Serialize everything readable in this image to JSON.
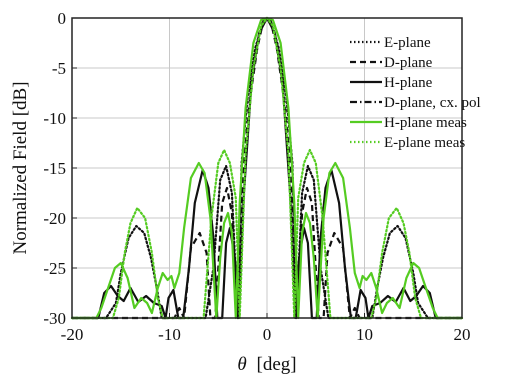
{
  "chart_data": {
    "type": "line",
    "title": "",
    "xlabel_symbol": "θ",
    "xlabel_unit": "[deg]",
    "ylabel": "Normalized Field [dB]",
    "xlim": [
      -20,
      20
    ],
    "ylim": [
      -30,
      0
    ],
    "xticks": [
      -20,
      -10,
      0,
      10,
      20
    ],
    "yticks": [
      0,
      -5,
      -10,
      -15,
      -20,
      -25,
      -30
    ],
    "grid": true,
    "legend_position": "top-right",
    "series": [
      {
        "name": "E-plane",
        "color": "#111111",
        "style": "dotted",
        "x": [
          -20,
          -17.5,
          -16.5,
          -15.5,
          -15.0,
          -14.2,
          -13.4,
          -12.6,
          -11.9,
          -11.3,
          -10.8,
          -10.0,
          -9.0,
          -7.5,
          -6.3,
          -5.5,
          -4.8,
          -4.2,
          -3.6,
          -3.0,
          -2.6,
          -2.0,
          -1.2,
          -0.4,
          0,
          0.4,
          1.2,
          2.0,
          2.6,
          3.0,
          3.6,
          4.2,
          4.8,
          5.5,
          6.3,
          7.5,
          9.0,
          10.0,
          10.8,
          11.3,
          11.9,
          12.6,
          13.4,
          14.2,
          15.0,
          15.5,
          16.5,
          17.5,
          20
        ],
        "y": [
          -30,
          -30,
          -30,
          -28.5,
          -25.5,
          -22.0,
          -20.8,
          -21.5,
          -24.0,
          -27.0,
          -30,
          -30,
          -30,
          -30,
          -30,
          -25.0,
          -16.2,
          -14.8,
          -17.5,
          -30,
          -14.5,
          -8.0,
          -3.0,
          -0.3,
          0,
          -0.3,
          -3.0,
          -8.0,
          -14.5,
          -30,
          -17.5,
          -14.8,
          -16.2,
          -25.0,
          -30,
          -30,
          -30,
          -30,
          -30,
          -27.0,
          -24.0,
          -21.5,
          -20.8,
          -22.0,
          -25.5,
          -28.5,
          -30,
          -30,
          -30
        ]
      },
      {
        "name": "D-plane",
        "color": "#111111",
        "style": "dashed",
        "x": [
          -20,
          -14,
          -12,
          -10.5,
          -9.5,
          -9.0,
          -8.5,
          -7.8,
          -6.9,
          -6.2,
          -5.8,
          -5.3,
          -4.6,
          -4.1,
          -3.6,
          -3.0,
          -2.5,
          -1.8,
          -1.0,
          -0.4,
          0,
          0.4,
          1.0,
          1.8,
          2.5,
          3.0,
          3.6,
          4.1,
          4.6,
          5.3,
          5.8,
          6.2,
          6.9,
          7.8,
          8.5,
          9.0,
          9.5,
          10.5,
          12,
          14,
          20
        ],
        "y": [
          -30,
          -30,
          -30,
          -30,
          -30,
          -29.0,
          -30,
          -23.0,
          -21.5,
          -23.5,
          -30,
          -30,
          -18.5,
          -17.0,
          -19.5,
          -30,
          -16.0,
          -8.5,
          -3.0,
          -0.4,
          0,
          -0.4,
          -3.0,
          -8.5,
          -16.0,
          -30,
          -19.5,
          -17.0,
          -18.5,
          -30,
          -30,
          -23.5,
          -21.5,
          -23.0,
          -30,
          -29.0,
          -30,
          -30,
          -30,
          -30,
          -30
        ]
      },
      {
        "name": "H-plane",
        "color": "#111111",
        "style": "solid",
        "x": [
          -20,
          -17.3,
          -16.7,
          -16.0,
          -15.3,
          -14.7,
          -14.0,
          -13.2,
          -12.4,
          -11.6,
          -10.8,
          -10.4,
          -10.1,
          -9.6,
          -9.1,
          -8.6,
          -8.0,
          -7.4,
          -6.6,
          -6.0,
          -5.5,
          -5.1,
          -4.6,
          -4.2,
          -3.8,
          -3.3,
          -2.9,
          -2.4,
          -1.6,
          -0.8,
          0,
          0.8,
          1.6,
          2.4,
          2.9,
          3.3,
          3.8,
          4.2,
          4.6,
          5.1,
          5.5,
          6.0,
          6.6,
          7.4,
          8.0,
          8.6,
          9.1,
          9.6,
          10.1,
          10.4,
          10.8,
          11.6,
          12.4,
          13.2,
          14.0,
          14.7,
          15.3,
          16.0,
          16.7,
          17.3,
          20
        ],
        "y": [
          -30,
          -30,
          -27.5,
          -26.8,
          -27.8,
          -28.3,
          -27.0,
          -28.4,
          -27.8,
          -28.5,
          -28.8,
          -30,
          -28.0,
          -27.2,
          -30,
          -30,
          -25.0,
          -18.5,
          -15.2,
          -17.0,
          -22.0,
          -30,
          -30,
          -22.5,
          -21.0,
          -24.0,
          -30,
          -18.0,
          -6.5,
          -1.5,
          0,
          -1.5,
          -6.5,
          -18.0,
          -30,
          -24.0,
          -21.0,
          -22.5,
          -30,
          -30,
          -22.0,
          -17.0,
          -15.2,
          -18.5,
          -25.0,
          -30,
          -30,
          -27.2,
          -28.0,
          -30,
          -28.8,
          -28.5,
          -27.8,
          -28.4,
          -27.0,
          -28.3,
          -27.8,
          -26.8,
          -27.5,
          -30,
          -30
        ]
      },
      {
        "name": "D-plane, cx. pol",
        "color": "#111111",
        "style": "dashdot",
        "x": [],
        "y": []
      },
      {
        "name": "H-plane meas",
        "color": "#55cc22",
        "style": "solid",
        "x": [
          -20,
          -17.5,
          -17.0,
          -16.3,
          -15.6,
          -15.0,
          -14.3,
          -13.6,
          -12.9,
          -12.3,
          -11.8,
          -11.2,
          -10.7,
          -10.2,
          -9.8,
          -9.5,
          -9.0,
          -8.5,
          -7.8,
          -7.0,
          -6.4,
          -5.8,
          -5.2,
          -4.8,
          -4.4,
          -4.0,
          -3.6,
          -3.2,
          -2.8,
          -2.2,
          -1.4,
          -0.6,
          0,
          0.6,
          1.4,
          2.2,
          2.8,
          3.2,
          3.6,
          4.0,
          4.4,
          4.8,
          5.2,
          5.8,
          6.4,
          7.0,
          7.8,
          8.5,
          9.0,
          9.5,
          9.8,
          10.2,
          10.7,
          11.2,
          11.8,
          12.3,
          12.9,
          13.6,
          14.3,
          15.0,
          15.6,
          16.3,
          17.0,
          17.5,
          20
        ],
        "y": [
          -30,
          -30,
          -29.0,
          -27.0,
          -25.0,
          -24.5,
          -26.0,
          -29.0,
          -28.0,
          -28.5,
          -29.5,
          -27.0,
          -25.5,
          -26.2,
          -25.8,
          -27.0,
          -25.5,
          -21.0,
          -16.0,
          -14.5,
          -15.5,
          -20.0,
          -30,
          -24.0,
          -20.5,
          -19.5,
          -21.5,
          -30,
          -18.5,
          -9.0,
          -2.5,
          -0.2,
          0,
          -0.2,
          -2.5,
          -9.0,
          -18.5,
          -30,
          -21.5,
          -19.5,
          -20.5,
          -24.0,
          -30,
          -20.0,
          -15.5,
          -14.5,
          -16.0,
          -21.0,
          -25.5,
          -27.0,
          -25.8,
          -26.2,
          -25.5,
          -27.0,
          -29.5,
          -28.5,
          -28.0,
          -29.0,
          -26.0,
          -24.5,
          -25.0,
          -27.0,
          -29.0,
          -30,
          -30
        ]
      },
      {
        "name": "E-plane meas",
        "color": "#55cc22",
        "style": "dotted",
        "x": [
          -20,
          -15.8,
          -15.2,
          -14.6,
          -14.0,
          -13.3,
          -12.5,
          -11.8,
          -11.2,
          -10.7,
          -10.2,
          -9.6,
          -9.0,
          -8.5,
          -7.8,
          -6.5,
          -5.7,
          -5.0,
          -4.4,
          -3.8,
          -3.2,
          -2.8,
          -2.2,
          -1.4,
          -0.6,
          0,
          0.6,
          1.4,
          2.2,
          2.8,
          3.2,
          3.8,
          4.4,
          5.0,
          5.7,
          6.5,
          7.8,
          8.5,
          9.0,
          9.6,
          10.2,
          10.7,
          11.2,
          11.8,
          12.5,
          13.3,
          14.0,
          14.6,
          15.2,
          15.8,
          20
        ],
        "y": [
          -30,
          -30,
          -28.0,
          -23.5,
          -20.5,
          -19.0,
          -20.0,
          -23.5,
          -28.0,
          -30,
          -30,
          -30,
          -30,
          -30,
          -30,
          -30,
          -20.0,
          -14.5,
          -13.2,
          -14.5,
          -18.0,
          -30,
          -13.5,
          -5.0,
          -0.8,
          0,
          -0.8,
          -5.0,
          -13.5,
          -30,
          -18.0,
          -14.5,
          -13.2,
          -14.5,
          -20.0,
          -30,
          -30,
          -30,
          -30,
          -30,
          -30,
          -30,
          -28.0,
          -23.5,
          -20.0,
          -19.0,
          -20.5,
          -23.5,
          -28.0,
          -30,
          -30
        ]
      }
    ]
  }
}
